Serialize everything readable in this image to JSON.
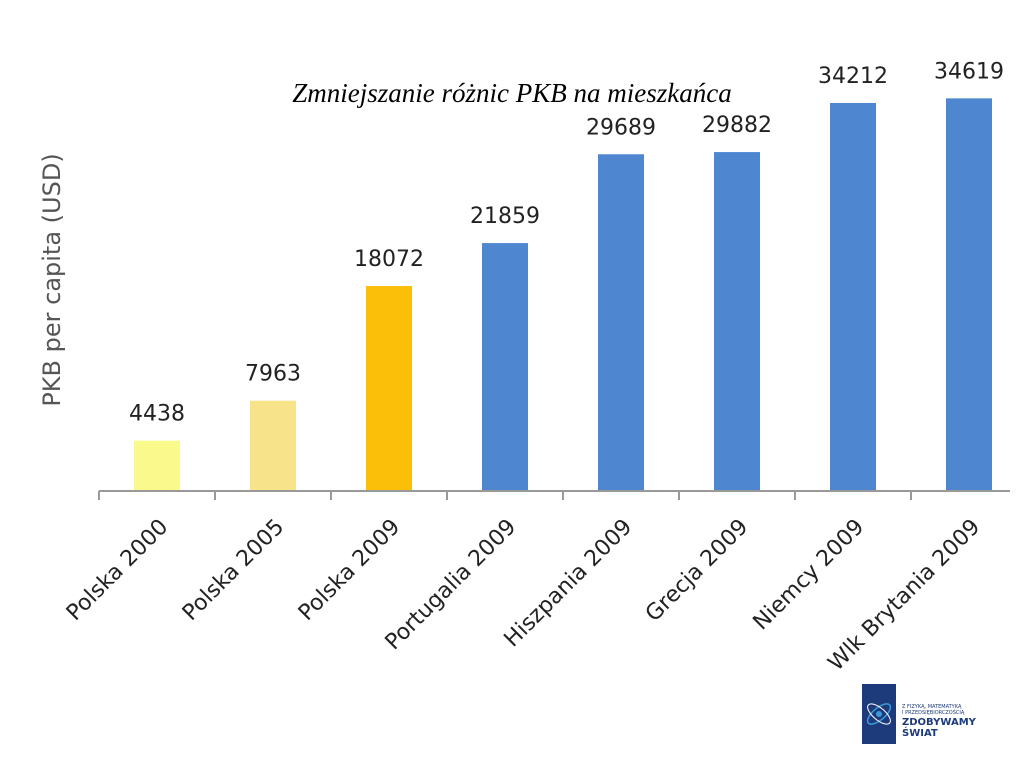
{
  "chart_data": {
    "type": "bar",
    "title": "Zmniejszanie różnic PKB na mieszkańca",
    "xlabel": "",
    "ylabel": "PKB per capita (USD)",
    "ylim": [
      0,
      38000
    ],
    "grid": false,
    "categories": [
      "Polska 2000",
      "Polska 2005",
      "Polska 2009",
      "Portugalia 2009",
      "Hiszpania 2009",
      "Grecja 2009",
      "Niemcy 2009",
      "Wlk Brytania 2009"
    ],
    "values": [
      4438,
      7963,
      18072,
      21859,
      29689,
      29882,
      34212,
      34619
    ],
    "colors": [
      "#fafa8c",
      "#f7e48a",
      "#fbbf0a",
      "#4f86d0",
      "#4f86d0",
      "#4f86d0",
      "#4f86d0",
      "#4f86d0"
    ]
  },
  "logo": {
    "line1": "Z FIZYKĄ, MATEMATYKĄ",
    "line2": "I PRZEDSIĘBIORCZOŚCIĄ",
    "line3": "ZDOBYWAMY",
    "line4": "ŚWIAT",
    "colors": {
      "dark": "#1d3a7a",
      "accent": "#3a9ad9"
    }
  }
}
